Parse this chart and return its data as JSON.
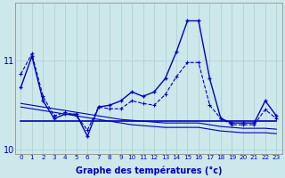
{
  "xlabel": "Graphe des températures (°c)",
  "background_color": "#cce8ea",
  "grid_color": "#aacdd0",
  "line_color": "#0000bb",
  "x": [
    0,
    1,
    2,
    3,
    4,
    5,
    6,
    7,
    8,
    9,
    10,
    11,
    12,
    13,
    14,
    15,
    16,
    17,
    18,
    19,
    20,
    21,
    22,
    23
  ],
  "spike_curve": [
    10.7,
    11.05,
    10.55,
    10.35,
    10.4,
    10.4,
    10.15,
    10.48,
    10.5,
    10.55,
    10.65,
    10.6,
    10.65,
    10.8,
    11.1,
    11.45,
    11.45,
    10.8,
    10.35,
    10.3,
    10.3,
    10.3,
    10.55,
    10.38
  ],
  "dashed_curve": [
    10.85,
    11.08,
    10.6,
    10.38,
    10.42,
    10.38,
    10.22,
    10.48,
    10.46,
    10.46,
    10.55,
    10.52,
    10.5,
    10.62,
    10.82,
    10.98,
    10.98,
    10.5,
    10.35,
    10.28,
    10.28,
    10.28,
    10.45,
    10.35
  ],
  "flat_line": [
    10.32,
    10.32,
    10.32,
    10.32,
    10.32,
    10.32,
    10.32,
    10.32,
    10.32,
    10.32,
    10.32,
    10.32,
    10.32,
    10.32,
    10.32,
    10.32,
    10.32,
    10.32,
    10.32,
    10.32,
    10.32,
    10.32,
    10.32,
    10.32
  ],
  "decline1": [
    10.52,
    10.5,
    10.48,
    10.46,
    10.44,
    10.42,
    10.4,
    10.38,
    10.36,
    10.34,
    10.33,
    10.32,
    10.31,
    10.3,
    10.3,
    10.3,
    10.3,
    10.28,
    10.26,
    10.25,
    10.24,
    10.24,
    10.24,
    10.23
  ],
  "decline2": [
    10.48,
    10.46,
    10.44,
    10.42,
    10.4,
    10.38,
    10.36,
    10.34,
    10.32,
    10.3,
    10.28,
    10.27,
    10.26,
    10.25,
    10.25,
    10.25,
    10.25,
    10.23,
    10.21,
    10.2,
    10.19,
    10.19,
    10.19,
    10.18
  ],
  "ylim": [
    9.95,
    11.65
  ],
  "yticks": [
    10,
    11
  ],
  "xlim": [
    -0.5,
    23.5
  ]
}
